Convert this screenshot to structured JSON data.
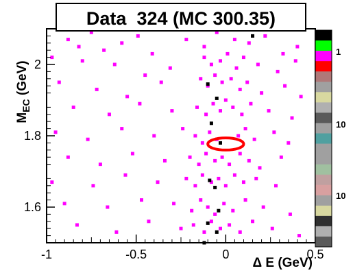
{
  "chart_data": {
    "type": "scatter",
    "title": "Data  324 (MC 300.35)",
    "xlabel": "Δ E (GeV)",
    "ylabel_main": "M",
    "ylabel_sub": "EC",
    "ylabel_unit": " (GeV)",
    "xlim": [
      -1,
      0.5
    ],
    "ylim": [
      1.5,
      2.1
    ],
    "xticks": [
      -1,
      -0.5,
      0,
      0.5
    ],
    "xtick_labels": [
      "-1",
      "-0.5",
      "0",
      "0.5"
    ],
    "yticks": [
      1.6,
      1.8,
      2.0
    ],
    "ytick_labels": [
      "1.6",
      "1.8",
      "2"
    ],
    "grid": false,
    "marker_color": "#ff00ff",
    "high_marker_color": "#000000",
    "ellipse_color": "#ff0000",
    "ellipse": {
      "cx": 0.0,
      "cy": 1.777,
      "rx": 0.1,
      "ry": 0.017
    },
    "palette_labels": [
      "1",
      "10",
      "10"
    ],
    "palette_colors": [
      "#000000",
      "#00ff00",
      "#ff00ff",
      "#ff0000",
      "#b07878",
      "#a0a0a0",
      "#d8d8a0",
      "#b0b0b0",
      "#5a5a5a",
      "#a0a0a0",
      "#50a0a0",
      "#a0a0a0",
      "#a0a0a0",
      "#a0c0a0",
      "#c0a0a0",
      "#d8a0a0",
      "#a0a0a0",
      "#d8d8a0",
      "#303030",
      "#b0b0b0",
      "#5a5a5a"
    ],
    "points": [
      [
        -0.88,
        2.07
      ],
      [
        -0.82,
        2.05
      ],
      [
        -0.75,
        2.09
      ],
      [
        -0.68,
        2.04
      ],
      [
        -0.58,
        2.06
      ],
      [
        -0.49,
        2.08
      ],
      [
        -0.41,
        2.03
      ],
      [
        -0.22,
        2.07
      ],
      [
        -0.12,
        2.05
      ],
      [
        -0.05,
        2.09
      ],
      [
        0.05,
        2.07
      ],
      [
        0.13,
        2.06
      ],
      [
        0.22,
        2.08
      ],
      [
        0.32,
        2.03
      ],
      [
        0.4,
        2.05
      ],
      [
        -0.97,
        2.02
      ],
      [
        -0.8,
        2.01
      ],
      [
        -0.62,
        2.0
      ],
      [
        -0.45,
        1.97
      ],
      [
        -0.31,
        1.99
      ],
      [
        -0.12,
        2.02
      ],
      [
        -0.08,
        2.0
      ],
      [
        -0.03,
        2.01
      ],
      [
        0.01,
        2.03
      ],
      [
        0.06,
        1.99
      ],
      [
        0.1,
        2.02
      ],
      [
        0.18,
        2.0
      ],
      [
        0.29,
        1.98
      ],
      [
        0.39,
        2.01
      ],
      [
        -0.93,
        1.95
      ],
      [
        -0.72,
        1.93
      ],
      [
        -0.55,
        1.91
      ],
      [
        -0.36,
        1.95
      ],
      [
        -0.14,
        1.96
      ],
      [
        -0.1,
        1.94
      ],
      [
        -0.06,
        1.97
      ],
      [
        -0.02,
        1.95
      ],
      [
        0.03,
        1.96
      ],
      [
        0.08,
        1.93
      ],
      [
        0.12,
        1.95
      ],
      [
        0.2,
        1.92
      ],
      [
        0.33,
        1.94
      ],
      [
        0.42,
        1.91
      ],
      [
        -0.85,
        1.88
      ],
      [
        -0.65,
        1.86
      ],
      [
        -0.48,
        1.89
      ],
      [
        -0.3,
        1.87
      ],
      [
        -0.16,
        1.88
      ],
      [
        -0.11,
        1.86
      ],
      [
        -0.07,
        1.89
      ],
      [
        -0.03,
        1.87
      ],
      [
        0.0,
        1.9
      ],
      [
        0.04,
        1.88
      ],
      [
        0.09,
        1.86
      ],
      [
        0.14,
        1.89
      ],
      [
        0.24,
        1.87
      ],
      [
        0.37,
        1.85
      ],
      [
        -0.95,
        1.81
      ],
      [
        -0.77,
        1.79
      ],
      [
        -0.58,
        1.82
      ],
      [
        -0.4,
        1.8
      ],
      [
        -0.24,
        1.82
      ],
      [
        -0.17,
        1.8
      ],
      [
        -0.13,
        1.78
      ],
      [
        -0.09,
        1.81
      ],
      [
        -0.05,
        1.79
      ],
      [
        0.07,
        1.8
      ],
      [
        0.11,
        1.82
      ],
      [
        0.16,
        1.79
      ],
      [
        0.27,
        1.81
      ],
      [
        0.35,
        1.78
      ],
      [
        -0.88,
        1.74
      ],
      [
        -0.7,
        1.72
      ],
      [
        -0.52,
        1.75
      ],
      [
        -0.34,
        1.73
      ],
      [
        -0.2,
        1.74
      ],
      [
        -0.15,
        1.72
      ],
      [
        -0.11,
        1.75
      ],
      [
        -0.06,
        1.73
      ],
      [
        -0.02,
        1.74
      ],
      [
        0.02,
        1.72
      ],
      [
        0.08,
        1.75
      ],
      [
        0.13,
        1.73
      ],
      [
        0.19,
        1.71
      ],
      [
        0.31,
        1.74
      ],
      [
        -0.97,
        1.67
      ],
      [
        -0.74,
        1.66
      ],
      [
        -0.56,
        1.69
      ],
      [
        -0.38,
        1.67
      ],
      [
        -0.22,
        1.68
      ],
      [
        -0.17,
        1.66
      ],
      [
        -0.13,
        1.69
      ],
      [
        -0.08,
        1.67
      ],
      [
        -0.04,
        1.68
      ],
      [
        0.0,
        1.66
      ],
      [
        0.05,
        1.69
      ],
      [
        0.1,
        1.67
      ],
      [
        0.17,
        1.68
      ],
      [
        0.28,
        1.66
      ],
      [
        -0.9,
        1.61
      ],
      [
        -0.66,
        1.6
      ],
      [
        -0.47,
        1.62
      ],
      [
        -0.29,
        1.61
      ],
      [
        -0.19,
        1.59
      ],
      [
        -0.14,
        1.62
      ],
      [
        -0.1,
        1.6
      ],
      [
        -0.06,
        1.58
      ],
      [
        -0.01,
        1.61
      ],
      [
        0.04,
        1.59
      ],
      [
        0.11,
        1.62
      ],
      [
        0.21,
        1.6
      ],
      [
        0.36,
        1.58
      ],
      [
        -0.83,
        1.55
      ],
      [
        -0.61,
        1.53
      ],
      [
        -0.43,
        1.56
      ],
      [
        -0.25,
        1.54
      ],
      [
        -0.18,
        1.55
      ],
      [
        -0.12,
        1.53
      ],
      [
        -0.08,
        1.56
      ],
      [
        -0.03,
        1.54
      ],
      [
        0.02,
        1.55
      ],
      [
        0.08,
        1.53
      ],
      [
        0.15,
        1.56
      ],
      [
        0.26,
        1.54
      ],
      [
        0.41,
        1.52
      ]
    ],
    "high_points": [
      [
        0.15,
        2.08
      ],
      [
        -0.06,
        2.1
      ],
      [
        -0.1,
        1.945
      ],
      [
        -0.05,
        1.905
      ],
      [
        -0.08,
        1.835
      ],
      [
        -0.03,
        1.78
      ],
      [
        -0.09,
        1.675
      ],
      [
        -0.06,
        1.655
      ],
      [
        -0.04,
        1.59
      ],
      [
        -0.1,
        1.555
      ],
      [
        -0.05,
        1.53
      ],
      [
        -0.12,
        1.5
      ]
    ]
  }
}
